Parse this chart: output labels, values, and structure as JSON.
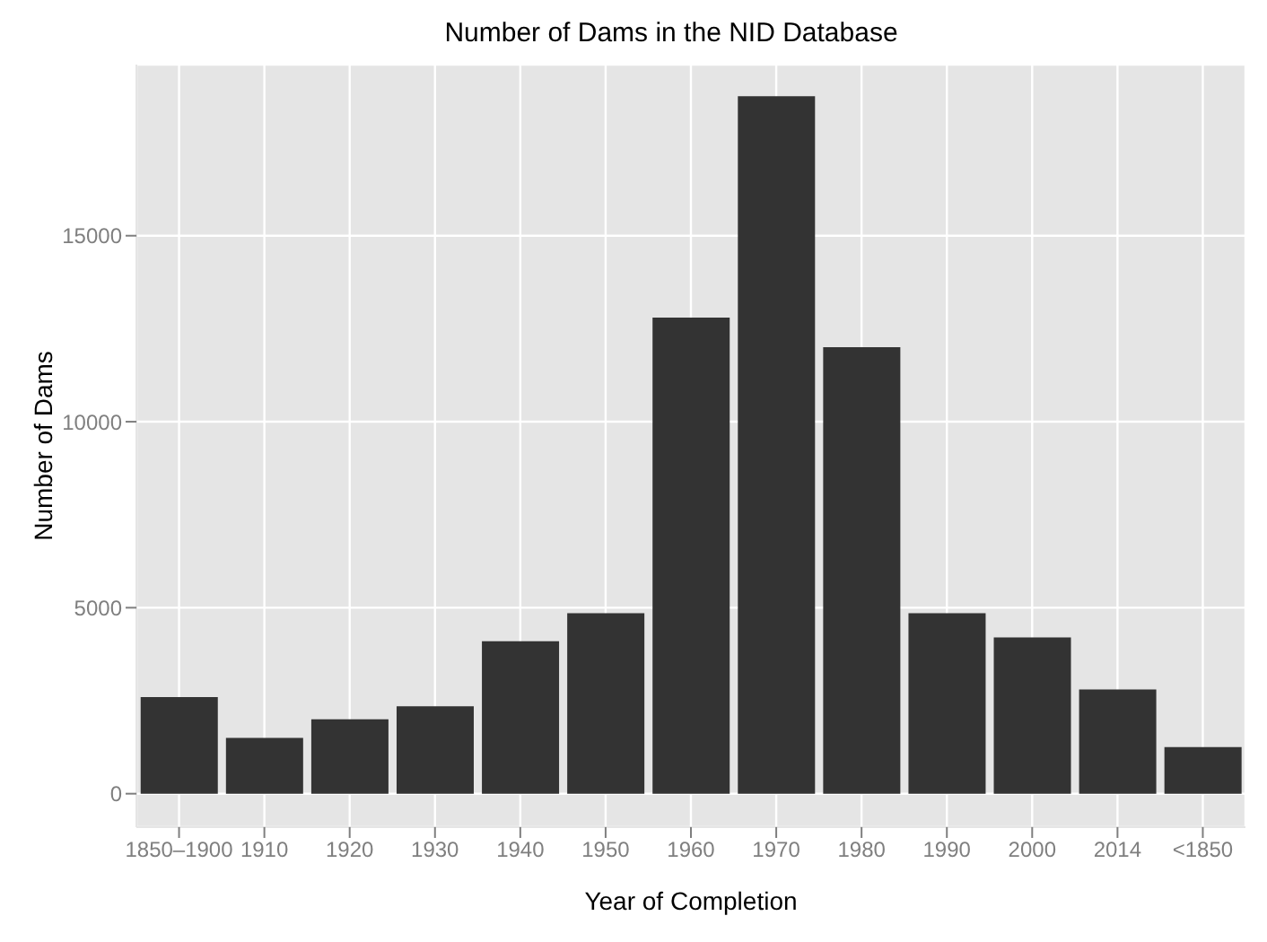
{
  "chart_data": {
    "type": "bar",
    "title": "Number of Dams in the NID Database",
    "xlabel": "Year of Completion",
    "ylabel": "Number of Dams",
    "categories": [
      "1850–1900",
      "1910",
      "1920",
      "1930",
      "1940",
      "1950",
      "1960",
      "1970",
      "1980",
      "1990",
      "2000",
      "2014",
      "<1850"
    ],
    "values": [
      2600,
      1500,
      2000,
      2350,
      4100,
      4850,
      12800,
      18750,
      12000,
      4850,
      4200,
      2800,
      1250
    ],
    "color": "#333333",
    "ylim": [
      -900,
      19600
    ],
    "yticks": [
      0,
      5000,
      10000,
      15000
    ],
    "grid": true,
    "legend": false
  }
}
